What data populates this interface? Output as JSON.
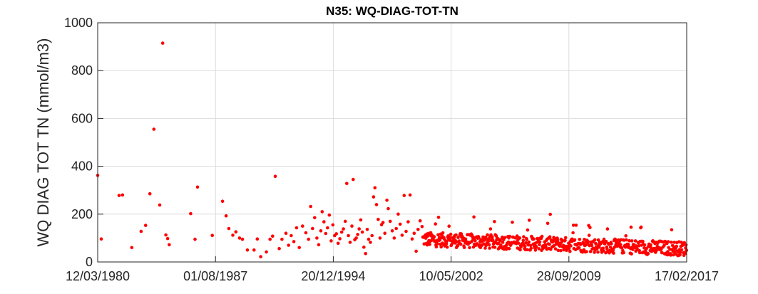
{
  "chart_data": {
    "type": "scatter",
    "title": "N35: WQ-DIAG-TOT-TN",
    "ylabel": "WQ DIAG TOT TN (mmol/m3)",
    "xlabel": "",
    "xlim": [
      "1980-03-12",
      "2017-02-17"
    ],
    "ylim": [
      0,
      1000
    ],
    "x_ticks": [
      "12/03/1980",
      "01/08/1987",
      "20/12/1994",
      "10/05/2002",
      "28/09/2009",
      "17/02/2017"
    ],
    "y_ticks": [
      "0",
      "200",
      "400",
      "600",
      "800",
      "1000"
    ],
    "grid": true,
    "marker_color": "#ff0000",
    "points": [
      [
        "1980-03-12",
        362
      ],
      [
        "1980-06-01",
        96
      ],
      [
        "1981-07-15",
        278
      ],
      [
        "1981-10-01",
        280
      ],
      [
        "1982-05-01",
        60
      ],
      [
        "1982-12-01",
        128
      ],
      [
        "1983-03-15",
        153
      ],
      [
        "1983-06-20",
        285
      ],
      [
        "1983-09-20",
        555
      ],
      [
        "1984-02-01",
        238
      ],
      [
        "1984-04-10",
        915
      ],
      [
        "1984-06-20",
        113
      ],
      [
        "1984-08-01",
        98
      ],
      [
        "1984-09-05",
        72
      ],
      [
        "1986-01-10",
        202
      ],
      [
        "1986-04-20",
        95
      ],
      [
        "1986-06-15",
        313
      ],
      [
        "1987-05-20",
        111
      ],
      [
        "1988-01-10",
        254
      ],
      [
        "1988-04-01",
        193
      ],
      [
        "1988-06-01",
        140
      ],
      [
        "1988-09-01",
        112
      ],
      [
        "1988-11-10",
        126
      ],
      [
        "1989-02-01",
        100
      ],
      [
        "1989-04-10",
        95
      ],
      [
        "1989-08-01",
        50
      ],
      [
        "1990-01-01",
        50
      ],
      [
        "1990-03-15",
        96
      ],
      [
        "1990-06-01",
        22
      ],
      [
        "1990-10-10",
        42
      ],
      [
        "1991-01-01",
        95
      ],
      [
        "1991-03-01",
        108
      ],
      [
        "1991-05-01",
        358
      ],
      [
        "1991-08-01",
        56
      ],
      [
        "1991-10-01",
        95
      ],
      [
        "1992-01-01",
        120
      ],
      [
        "1992-03-01",
        70
      ],
      [
        "1992-05-01",
        110
      ],
      [
        "1992-07-01",
        85
      ],
      [
        "1992-09-01",
        143
      ],
      [
        "1992-11-01",
        60
      ],
      [
        "1993-01-15",
        150
      ],
      [
        "1993-04-01",
        122
      ],
      [
        "1993-06-01",
        95
      ],
      [
        "1993-07-20",
        232
      ],
      [
        "1993-09-01",
        140
      ],
      [
        "1993-10-20",
        185
      ],
      [
        "1993-12-10",
        100
      ],
      [
        "1994-01-20",
        72
      ],
      [
        "1994-03-10",
        130
      ],
      [
        "1994-04-10",
        210
      ],
      [
        "1994-05-20",
        168
      ],
      [
        "1994-07-01",
        119
      ],
      [
        "1994-08-10",
        143
      ],
      [
        "1994-09-20",
        196
      ],
      [
        "1994-11-01",
        88
      ],
      [
        "1994-12-10",
        155
      ],
      [
        "1995-01-20",
        110
      ],
      [
        "1995-03-01",
        118
      ],
      [
        "1995-04-10",
        78
      ],
      [
        "1995-05-20",
        97
      ],
      [
        "1995-07-01",
        125
      ],
      [
        "1995-08-10",
        138
      ],
      [
        "1995-09-20",
        170
      ],
      [
        "1995-10-25",
        328
      ],
      [
        "1995-12-01",
        110
      ],
      [
        "1996-01-10",
        82
      ],
      [
        "1996-02-20",
        150
      ],
      [
        "1996-03-20",
        345
      ],
      [
        "1996-04-25",
        93
      ],
      [
        "1996-05-30",
        100
      ],
      [
        "1996-07-01",
        115
      ],
      [
        "1996-08-05",
        138
      ],
      [
        "1996-09-10",
        176
      ],
      [
        "1996-10-15",
        125
      ],
      [
        "1996-11-20",
        62
      ],
      [
        "1996-12-30",
        35
      ],
      [
        "1997-02-05",
        136
      ],
      [
        "1997-03-10",
        95
      ],
      [
        "1997-04-20",
        82
      ],
      [
        "1997-05-25",
        110
      ],
      [
        "1997-06-30",
        272
      ],
      [
        "1997-08-01",
        310
      ],
      [
        "1997-09-05",
        240
      ],
      [
        "1997-10-15",
        178
      ],
      [
        "1997-11-25",
        100
      ],
      [
        "1997-12-30",
        156
      ],
      [
        "1998-02-01",
        165
      ],
      [
        "1998-03-15",
        120
      ],
      [
        "1998-05-01",
        258
      ],
      [
        "1998-06-01",
        223
      ],
      [
        "1998-07-15",
        170
      ],
      [
        "1998-09-01",
        130
      ],
      [
        "1998-10-15",
        100
      ],
      [
        "1998-12-01",
        140
      ],
      [
        "1999-01-15",
        200
      ],
      [
        "1999-03-01",
        158
      ],
      [
        "1999-04-15",
        112
      ],
      [
        "1999-06-01",
        278
      ],
      [
        "1999-07-15",
        128
      ],
      [
        "1999-09-01",
        168
      ],
      [
        "1999-10-15",
        280
      ],
      [
        "1999-12-01",
        96
      ],
      [
        "2000-01-15",
        120
      ],
      [
        "2000-03-01",
        45
      ],
      [
        "2000-04-15",
        136
      ],
      [
        "2000-06-01",
        172
      ],
      [
        "2000-07-15",
        148
      ]
    ]
  }
}
